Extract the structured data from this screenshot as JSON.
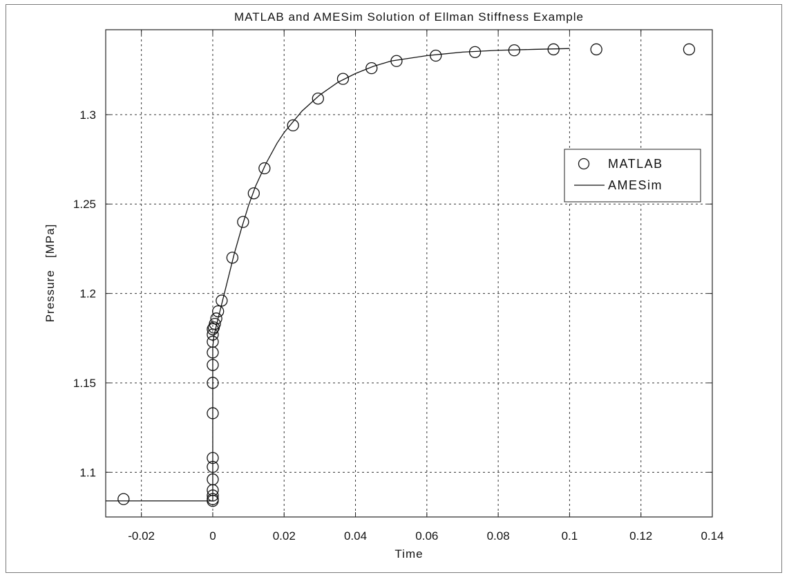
{
  "chart_data": {
    "type": "line",
    "title": "MATLAB and AMESim Solution of Ellman Stiffness Example",
    "xlabel": "Time",
    "ylabel": "Pressure   [MPa]",
    "xlim": [
      -0.03,
      0.14
    ],
    "ylim": [
      1.075,
      1.3475
    ],
    "xticks": [
      -0.02,
      0,
      0.02,
      0.04,
      0.06,
      0.08,
      0.1,
      0.12,
      0.14
    ],
    "xtick_labels": [
      "-0.02",
      "0",
      "0.02",
      "0.04",
      "0.06",
      "0.08",
      "0.1",
      "0.12",
      "0.14"
    ],
    "yticks": [
      1.1,
      1.15,
      1.2,
      1.25,
      1.3
    ],
    "ytick_labels": [
      "1.1",
      "1.15",
      "1.2",
      "1.25",
      "1.3"
    ],
    "grid": true,
    "legend_position": "right",
    "series": [
      {
        "name": "MATLAB",
        "style": "circle-markers",
        "color": "#111111",
        "points": [
          [
            -0.025,
            1.085
          ],
          [
            0,
            1.084
          ],
          [
            0,
            1.085
          ],
          [
            0,
            1.087
          ],
          [
            0,
            1.09
          ],
          [
            0,
            1.096
          ],
          [
            0,
            1.103
          ],
          [
            0,
            1.108
          ],
          [
            0,
            1.133
          ],
          [
            0,
            1.15
          ],
          [
            0,
            1.16
          ],
          [
            0,
            1.167
          ],
          [
            0,
            1.173
          ],
          [
            0,
            1.177
          ],
          [
            0,
            1.18
          ],
          [
            0.0003,
            1.181
          ],
          [
            0.0006,
            1.183
          ],
          [
            0.001,
            1.186
          ],
          [
            0.0015,
            1.19
          ],
          [
            0.0025,
            1.196
          ],
          [
            0.0055,
            1.22
          ],
          [
            0.0085,
            1.24
          ],
          [
            0.0115,
            1.256
          ],
          [
            0.0145,
            1.27
          ],
          [
            0.0225,
            1.294
          ],
          [
            0.0295,
            1.309
          ],
          [
            0.0365,
            1.32
          ],
          [
            0.0445,
            1.326
          ],
          [
            0.0515,
            1.33
          ],
          [
            0.0625,
            1.333
          ],
          [
            0.0735,
            1.335
          ],
          [
            0.0845,
            1.336
          ],
          [
            0.0955,
            1.3365
          ],
          [
            0.1075,
            1.3365
          ],
          [
            0.1335,
            1.3365
          ]
        ]
      },
      {
        "name": "AMESim",
        "style": "solid-line",
        "color": "#111111",
        "points": [
          [
            -0.03,
            1.084
          ],
          [
            0,
            1.084
          ],
          [
            0,
            1.17
          ],
          [
            0.0003,
            1.176
          ],
          [
            0.001,
            1.182
          ],
          [
            0.002,
            1.19
          ],
          [
            0.004,
            1.206
          ],
          [
            0.006,
            1.222
          ],
          [
            0.008,
            1.236
          ],
          [
            0.01,
            1.249
          ],
          [
            0.012,
            1.26
          ],
          [
            0.015,
            1.273
          ],
          [
            0.018,
            1.284
          ],
          [
            0.02,
            1.29
          ],
          [
            0.025,
            1.302
          ],
          [
            0.03,
            1.311
          ],
          [
            0.035,
            1.318
          ],
          [
            0.04,
            1.323
          ],
          [
            0.045,
            1.327
          ],
          [
            0.05,
            1.33
          ],
          [
            0.06,
            1.333
          ],
          [
            0.07,
            1.335
          ],
          [
            0.08,
            1.336
          ],
          [
            0.09,
            1.3365
          ],
          [
            0.1,
            1.337
          ]
        ]
      }
    ]
  }
}
